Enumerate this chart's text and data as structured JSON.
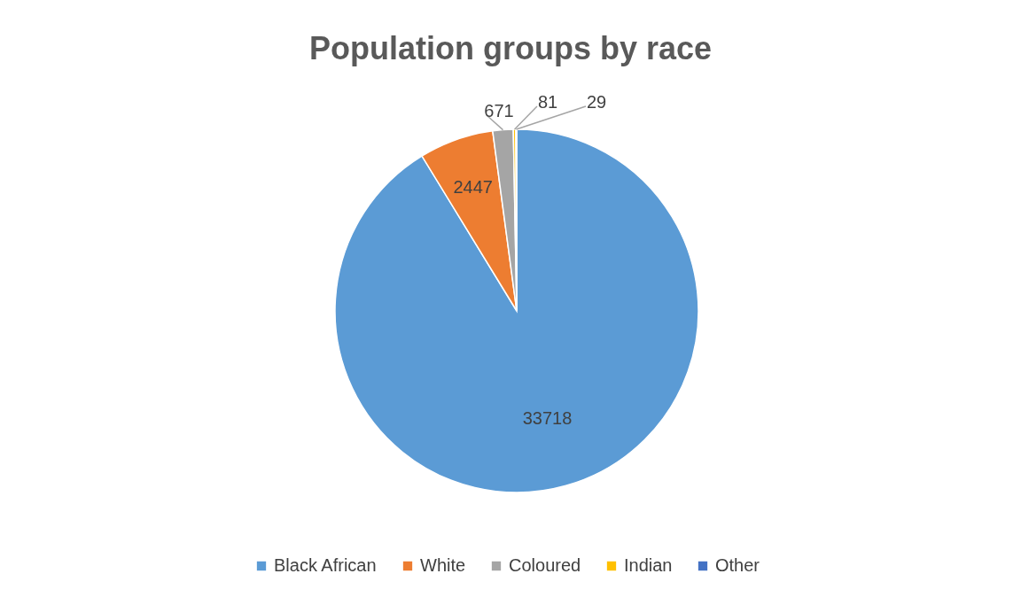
{
  "chart_data": {
    "type": "pie",
    "title": "Population groups by race",
    "categories": [
      "Black African",
      "White",
      "Coloured",
      "Indian",
      "Other"
    ],
    "values": [
      33718,
      2447,
      671,
      81,
      29
    ],
    "colors": [
      "#5b9bd5",
      "#ed7d31",
      "#a5a5a5",
      "#ffc000",
      "#4472c4"
    ],
    "data_labels": true,
    "legend": "bottom"
  }
}
